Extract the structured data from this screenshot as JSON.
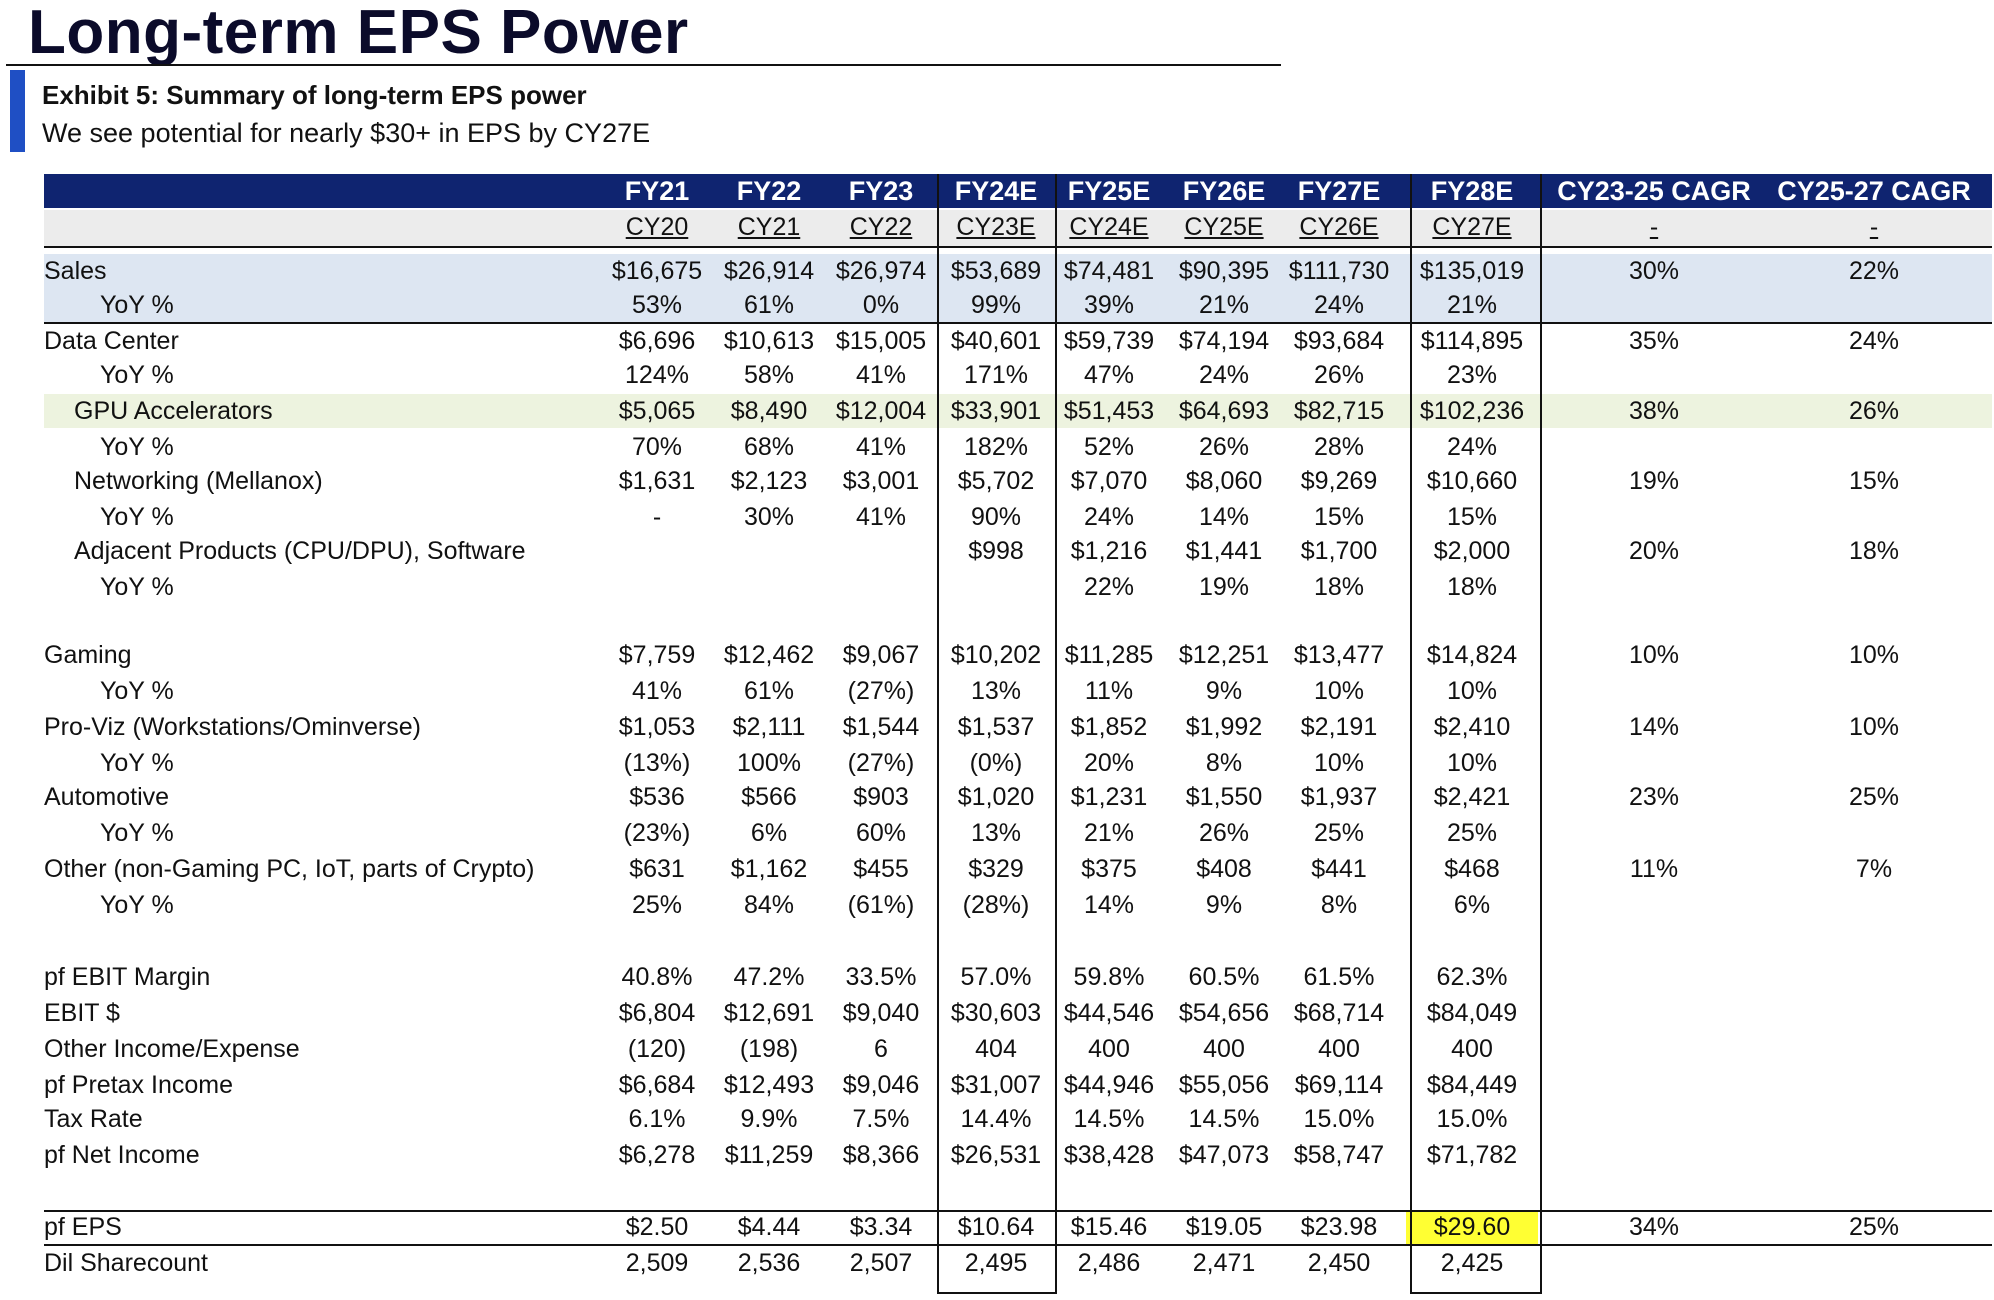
{
  "page": {
    "title": "Long-term EPS Power",
    "exhibit_title": "Exhibit 5: Summary of long-term EPS power",
    "exhibit_subtitle": "We see potential for nearly $30+ in EPS by CY27E"
  },
  "table": {
    "fy_headers": [
      "FY21",
      "FY22",
      "FY23",
      "FY24E",
      "FY25E",
      "FY26E",
      "FY27E",
      "FY28E",
      "CY23-25 CAGR",
      "CY25-27 CAGR"
    ],
    "cy_headers": [
      "CY20",
      "CY21",
      "CY22",
      "CY23E",
      "CY24E",
      "CY25E",
      "CY26E",
      "CY27E",
      "-",
      "-"
    ],
    "rows": [
      {
        "label": "Sales",
        "indent": 0,
        "style": "blue",
        "values": [
          "$16,675",
          "$26,914",
          "$26,974",
          "$53,689",
          "$74,481",
          "$90,395",
          "$111,730",
          "$135,019",
          "30%",
          "22%"
        ]
      },
      {
        "label": "YoY %",
        "indent": 2,
        "style": "blue",
        "values": [
          "53%",
          "61%",
          "0%",
          "99%",
          "39%",
          "21%",
          "24%",
          "21%",
          "",
          ""
        ]
      },
      {
        "label": "Data Center",
        "indent": 0,
        "style": "",
        "values": [
          "$6,696",
          "$10,613",
          "$15,005",
          "$40,601",
          "$59,739",
          "$74,194",
          "$93,684",
          "$114,895",
          "35%",
          "24%"
        ]
      },
      {
        "label": "YoY %",
        "indent": 2,
        "style": "",
        "values": [
          "124%",
          "58%",
          "41%",
          "171%",
          "47%",
          "24%",
          "26%",
          "23%",
          "",
          ""
        ]
      },
      {
        "label": "GPU Accelerators",
        "indent": 1,
        "style": "green",
        "values": [
          "$5,065",
          "$8,490",
          "$12,004",
          "$33,901",
          "$51,453",
          "$64,693",
          "$82,715",
          "$102,236",
          "38%",
          "26%"
        ]
      },
      {
        "label": "YoY %",
        "indent": 2,
        "style": "",
        "values": [
          "70%",
          "68%",
          "41%",
          "182%",
          "52%",
          "26%",
          "28%",
          "24%",
          "",
          ""
        ]
      },
      {
        "label": "Networking (Mellanox)",
        "indent": 1,
        "style": "",
        "values": [
          "$1,631",
          "$2,123",
          "$3,001",
          "$5,702",
          "$7,070",
          "$8,060",
          "$9,269",
          "$10,660",
          "19%",
          "15%"
        ]
      },
      {
        "label": "YoY %",
        "indent": 2,
        "style": "",
        "values": [
          "-",
          "30%",
          "41%",
          "90%",
          "24%",
          "14%",
          "15%",
          "15%",
          "",
          ""
        ]
      },
      {
        "label": "Adjacent Products (CPU/DPU), Software",
        "indent": 1,
        "style": "",
        "values": [
          "",
          "",
          "",
          "$998",
          "$1,216",
          "$1,441",
          "$1,700",
          "$2,000",
          "20%",
          "18%"
        ]
      },
      {
        "label": "YoY %",
        "indent": 2,
        "style": "",
        "values": [
          "",
          "",
          "",
          "",
          "22%",
          "19%",
          "18%",
          "18%",
          "",
          ""
        ]
      },
      {
        "label": "",
        "indent": 0,
        "style": "",
        "values": [
          "",
          "",
          "",
          "",
          "",
          "",
          "",
          "",
          "",
          ""
        ]
      },
      {
        "label": "Gaming",
        "indent": 0,
        "style": "",
        "values": [
          "$7,759",
          "$12,462",
          "$9,067",
          "$10,202",
          "$11,285",
          "$12,251",
          "$13,477",
          "$14,824",
          "10%",
          "10%"
        ]
      },
      {
        "label": "YoY %",
        "indent": 2,
        "style": "",
        "values": [
          "41%",
          "61%",
          "(27%)",
          "13%",
          "11%",
          "9%",
          "10%",
          "10%",
          "",
          ""
        ]
      },
      {
        "label": "Pro-Viz (Workstations/Ominverse)",
        "indent": 0,
        "style": "",
        "values": [
          "$1,053",
          "$2,111",
          "$1,544",
          "$1,537",
          "$1,852",
          "$1,992",
          "$2,191",
          "$2,410",
          "14%",
          "10%"
        ]
      },
      {
        "label": "YoY %",
        "indent": 2,
        "style": "",
        "values": [
          "(13%)",
          "100%",
          "(27%)",
          "(0%)",
          "20%",
          "8%",
          "10%",
          "10%",
          "",
          ""
        ]
      },
      {
        "label": "Automotive",
        "indent": 0,
        "style": "",
        "values": [
          "$536",
          "$566",
          "$903",
          "$1,020",
          "$1,231",
          "$1,550",
          "$1,937",
          "$2,421",
          "23%",
          "25%"
        ]
      },
      {
        "label": "YoY %",
        "indent": 2,
        "style": "",
        "values": [
          "(23%)",
          "6%",
          "60%",
          "13%",
          "21%",
          "26%",
          "25%",
          "25%",
          "",
          ""
        ]
      },
      {
        "label": "Other (non-Gaming PC, IoT, parts of Crypto)",
        "indent": 0,
        "style": "",
        "values": [
          "$631",
          "$1,162",
          "$455",
          "$329",
          "$375",
          "$408",
          "$441",
          "$468",
          "11%",
          "7%"
        ]
      },
      {
        "label": "YoY %",
        "indent": 2,
        "style": "",
        "values": [
          "25%",
          "84%",
          "(61%)",
          "(28%)",
          "14%",
          "9%",
          "8%",
          "6%",
          "",
          ""
        ]
      },
      {
        "label": "",
        "indent": 0,
        "style": "",
        "values": [
          "",
          "",
          "",
          "",
          "",
          "",
          "",
          "",
          "",
          ""
        ]
      },
      {
        "label": "pf EBIT Margin",
        "indent": 0,
        "style": "",
        "values": [
          "40.8%",
          "47.2%",
          "33.5%",
          "57.0%",
          "59.8%",
          "60.5%",
          "61.5%",
          "62.3%",
          "",
          ""
        ]
      },
      {
        "label": "EBIT $",
        "indent": 0,
        "style": "",
        "values": [
          "$6,804",
          "$12,691",
          "$9,040",
          "$30,603",
          "$44,546",
          "$54,656",
          "$68,714",
          "$84,049",
          "",
          ""
        ]
      },
      {
        "label": "Other Income/Expense",
        "indent": 0,
        "style": "",
        "values": [
          "(120)",
          "(198)",
          "6",
          "404",
          "400",
          "400",
          "400",
          "400",
          "",
          ""
        ]
      },
      {
        "label": "pf Pretax Income",
        "indent": 0,
        "style": "",
        "values": [
          "$6,684",
          "$12,493",
          "$9,046",
          "$31,007",
          "$44,946",
          "$55,056",
          "$69,114",
          "$84,449",
          "",
          ""
        ]
      },
      {
        "label": "Tax Rate",
        "indent": 0,
        "style": "",
        "values": [
          "6.1%",
          "9.9%",
          "7.5%",
          "14.4%",
          "14.5%",
          "14.5%",
          "15.0%",
          "15.0%",
          "",
          ""
        ]
      },
      {
        "label": "pf Net Income",
        "indent": 0,
        "style": "",
        "values": [
          "$6,278",
          "$11,259",
          "$8,366",
          "$26,531",
          "$38,428",
          "$47,073",
          "$58,747",
          "$71,782",
          "",
          ""
        ]
      },
      {
        "label": "",
        "indent": 0,
        "style": "",
        "values": [
          "",
          "",
          "",
          "",
          "",
          "",
          "",
          "",
          "",
          ""
        ]
      },
      {
        "label": "pf EPS",
        "indent": 0,
        "style": "eps",
        "values": [
          "$2.50",
          "$4.44",
          "$3.34",
          "$10.64",
          "$15.46",
          "$19.05",
          "$23.98",
          "$29.60",
          "34%",
          "25%"
        ]
      },
      {
        "label": "Dil Sharecount",
        "indent": 0,
        "style": "",
        "values": [
          "2,509",
          "2,536",
          "2,507",
          "2,495",
          "2,486",
          "2,471",
          "2,450",
          "2,425",
          "",
          ""
        ]
      }
    ]
  }
}
